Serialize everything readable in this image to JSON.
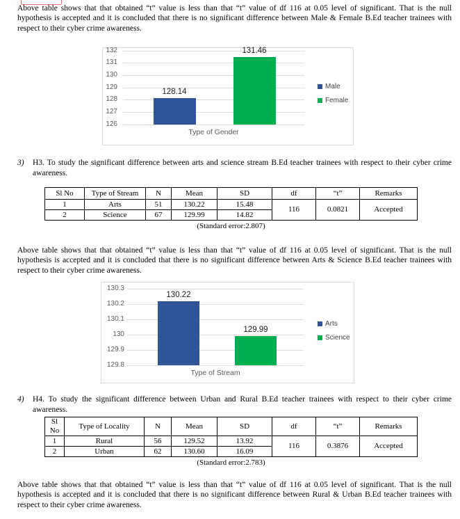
{
  "paragraphs": {
    "gender": "Above table shows that that obtained “t” value is less than that “t” value of df 116 at 0.05 level of significant. That is the null hypothesis is accepted and it is concluded that there is no significant difference between Male & Female B.Ed teacher trainees with respect to their cyber crime awareness.",
    "stream": "Above table shows that that obtained “t” value is less than that “t” value of df 116 at 0.05 level of significant. That is the null hypothesis is accepted and it is concluded that there is no significant difference between Arts & Science B.Ed teacher trainees with respect to their cyber crime awareness.",
    "locality": "Above table shows that that obtained “t” value is less than that “t” value of df 116 at 0.05 level of significant. That is the null hypothesis is accepted and it is concluded that there is no significant difference between Rural & Urban B.Ed teacher trainees with respect to their cyber crime awareness."
  },
  "sections": [
    {
      "number": "3)",
      "text": "H3. To study the significant difference between arts and science stream B.Ed teacher trainees with respect to their cyber crime awareness."
    },
    {
      "number": "4)",
      "text": "H4. To study the significant difference between Urban and Rural B.Ed teacher trainees with respect to their cyber crime awareness."
    }
  ],
  "tables": [
    {
      "headers": [
        "Sl No",
        "Type of Stream",
        "N",
        "Mean",
        "SD",
        "df",
        "“t”",
        "Remarks"
      ],
      "rows": [
        [
          "1",
          "Arts",
          "51",
          "130.22",
          "15.48"
        ],
        [
          "2",
          "Science",
          "67",
          "129.99",
          "14.82"
        ]
      ],
      "df": "116",
      "t": "0.0821",
      "remarks": "Accepted",
      "caption": "(Standard error:2.807)"
    },
    {
      "headers": [
        "Sl No",
        "Type of Locality",
        "N",
        "Mean",
        "SD",
        "df",
        "“t”",
        "Remarks"
      ],
      "rows": [
        [
          "1",
          "Rural",
          "56",
          "129.52",
          "13.92"
        ],
        [
          "2",
          "Urban",
          "62",
          "130.60",
          "16.09"
        ]
      ],
      "df": "116",
      "t": "0.3876",
      "remarks": "Accepted",
      "caption": "(Standard error:2.783)"
    }
  ],
  "chart_data": [
    {
      "type": "bar",
      "title": "",
      "categories": [
        "Male",
        "Female"
      ],
      "values": [
        128.14,
        131.46
      ],
      "value_labels": [
        "128.14",
        "131.46"
      ],
      "colors": [
        "#2f5597",
        "#00b050"
      ],
      "legend": [
        "Male",
        "Female"
      ],
      "legend_position": "right",
      "xlabel": "Type of Gender",
      "ylabel": "",
      "ylim": [
        126,
        132
      ],
      "yticks": [
        132,
        131,
        130,
        129,
        128,
        127,
        126
      ],
      "grid": true
    },
    {
      "type": "bar",
      "title": "",
      "categories": [
        "Arts",
        "Science"
      ],
      "values": [
        130.22,
        129.99
      ],
      "value_labels": [
        "130.22",
        "129.99"
      ],
      "colors": [
        "#2f5597",
        "#00b050"
      ],
      "legend": [
        "Arts",
        "Science"
      ],
      "legend_position": "right",
      "xlabel": "Type of Stream",
      "ylabel": "",
      "ylim": [
        129.8,
        130.3
      ],
      "yticks": [
        130.3,
        130.2,
        130.1,
        130,
        129.9,
        129.8
      ],
      "grid": true
    }
  ]
}
